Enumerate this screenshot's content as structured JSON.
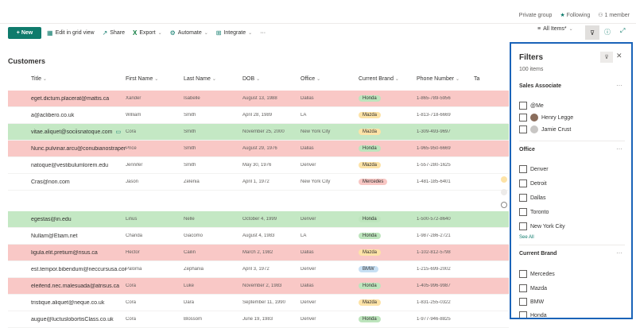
{
  "topbar": {
    "group_type": "Private group",
    "following": "Following",
    "members": "1 member"
  },
  "toolbar": {
    "new_label": "New",
    "grid_label": "Edit in grid view",
    "share_label": "Share",
    "export_label": "Export",
    "automate_label": "Automate",
    "integrate_label": "Integrate",
    "more_label": "···",
    "view_label": "All Items*"
  },
  "list": {
    "title": "Customers",
    "columns": [
      "Title",
      "First Name",
      "Last Name",
      "DOB",
      "Office",
      "Current Brand",
      "Phone Number",
      "Ta"
    ],
    "rows": [
      {
        "title": "eget.dictum.placerat@mattis.ca",
        "first": "Xander",
        "last": "Isabelle",
        "dob": "August 13, 1988",
        "office": "Dallas",
        "brand": "Honda",
        "phone": "1-865-789-5956",
        "color": "red"
      },
      {
        "title": "a@aclibero.co.uk",
        "first": "William",
        "last": "Smith",
        "dob": "April 28, 1989",
        "office": "LA",
        "brand": "Mazda",
        "phone": "1-813-718-6669",
        "color": ""
      },
      {
        "title": "vitae.aliquet@sociisnatoque.com",
        "first": "Cora",
        "last": "Smith",
        "dob": "November 25, 2000",
        "office": "New York City",
        "brand": "Mazda",
        "phone": "1-309-493-9697",
        "color": "green"
      },
      {
        "title": "Nunc.pulvinar.arcu@conubianostraper.edu",
        "first": "Price",
        "last": "Smith",
        "dob": "August 29, 1976",
        "office": "Dallas",
        "brand": "Honda",
        "phone": "1-965-950-6669",
        "color": "red"
      },
      {
        "title": "natoque@vestibulumlorem.edu",
        "first": "Jennifer",
        "last": "Smith",
        "dob": "May 30, 1976",
        "office": "Denver",
        "brand": "Mazda",
        "phone": "1-557-280-1625",
        "color": ""
      },
      {
        "title": "Cras@non.com",
        "first": "Jason",
        "last": "Zelenia",
        "dob": "April 1, 1972",
        "office": "New York City",
        "brand": "Mercedes",
        "phone": "1-481-185-6401",
        "color": ""
      },
      {
        "title": "egestas@in.edu",
        "first": "Linus",
        "last": "Nelle",
        "dob": "October 4, 1999",
        "office": "Denver",
        "brand": "Honda",
        "phone": "1-500-572-8640",
        "color": "green"
      },
      {
        "title": "Nullam@Etiam.net",
        "first": "Chanda",
        "last": "Giacomo",
        "dob": "August 4, 1983",
        "office": "LA",
        "brand": "Honda",
        "phone": "1-987-286-2721",
        "color": ""
      },
      {
        "title": "ligula.elit.pretium@risus.ca",
        "first": "Hector",
        "last": "Cailin",
        "dob": "March 2, 1982",
        "office": "Dallas",
        "brand": "Mazda",
        "phone": "1-102-812-5798",
        "color": "red"
      },
      {
        "title": "est.tempor.bibendum@neccursusa.com",
        "first": "Paloma",
        "last": "Zephania",
        "dob": "April 3, 1972",
        "office": "Denver",
        "brand": "BMW",
        "phone": "1-215-699-2002",
        "color": ""
      },
      {
        "title": "eleifend.nec.malesuada@atrisus.ca",
        "first": "Cora",
        "last": "Luke",
        "dob": "November 2, 1983",
        "office": "Dallas",
        "brand": "Honda",
        "phone": "1-405-996-9987",
        "color": "red"
      },
      {
        "title": "tristique.aliquet@neque.co.uk",
        "first": "Cora",
        "last": "Dara",
        "dob": "September 11, 1990",
        "office": "Denver",
        "brand": "Mazda",
        "phone": "1-831-255-0322",
        "color": ""
      },
      {
        "title": "augue@luctuslobortisClass.co.uk",
        "first": "Cora",
        "last": "Blossom",
        "dob": "June 19, 1983",
        "office": "Denver",
        "brand": "Honda",
        "phone": "1-977-946-8825",
        "color": ""
      }
    ]
  },
  "filters": {
    "title": "Filters",
    "count": "100 items",
    "sales_header": "Sales Associate",
    "sales_options": [
      "@Me",
      "Henry Legge",
      "Jamie Crust"
    ],
    "office_header": "Office",
    "office_options": [
      "Denver",
      "Detroit",
      "Dallas",
      "Toronto",
      "New York City"
    ],
    "see_all": "See All",
    "brand_header": "Current Brand",
    "brand_options": [
      "Mercedes",
      "Mazda",
      "BMW",
      "Honda"
    ],
    "more": "···"
  },
  "colors": {
    "accent": "#0f7b6c",
    "red_row": "#f9c8c6",
    "green_row": "#c4e8c4",
    "panel_border": "#1a63b8"
  }
}
